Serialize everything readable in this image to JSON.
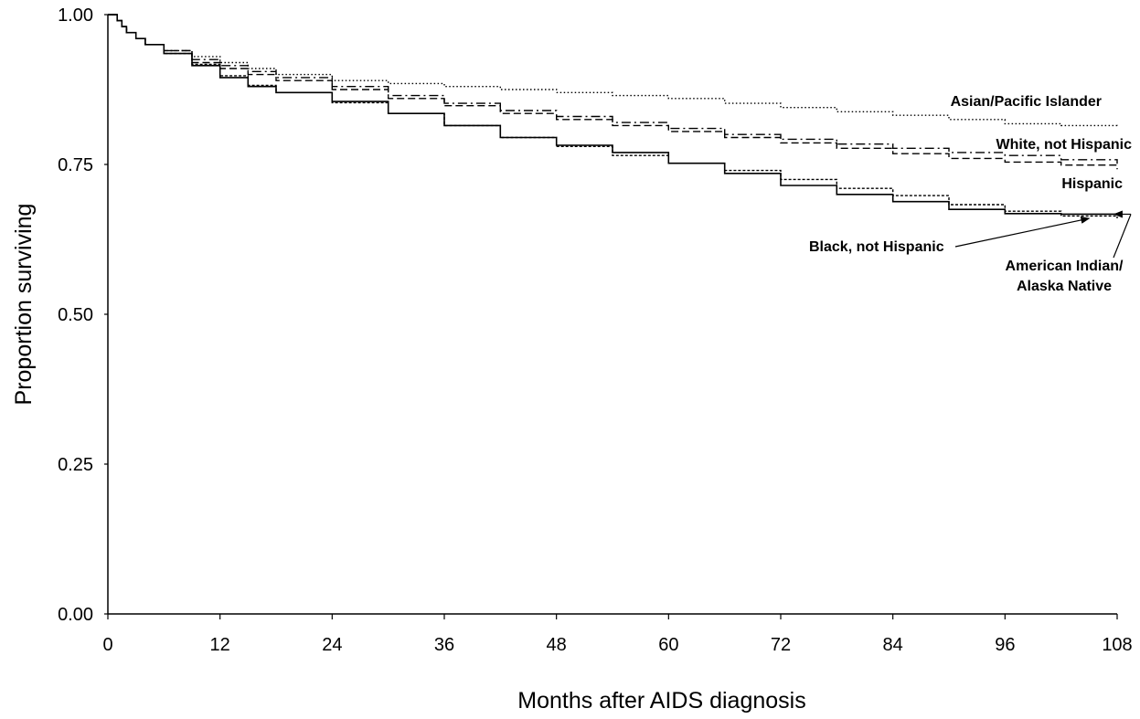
{
  "chart_data": {
    "type": "line",
    "title": "",
    "xlabel": "Months after AIDS diagnosis",
    "ylabel": "Proportion surviving",
    "xlim": [
      0,
      108
    ],
    "ylim": [
      0,
      1
    ],
    "x_ticks": [
      "0",
      "12",
      "24",
      "36",
      "48",
      "60",
      "72",
      "84",
      "96",
      "108"
    ],
    "y_ticks": [
      "0.00",
      "0.25",
      "0.50",
      "0.75",
      "1.00"
    ],
    "grid": false,
    "legend": "none (labels placed next to lines)",
    "series": [
      {
        "name": "Asian/Pacific Islander",
        "style": "dotted",
        "x": [
          0,
          0.5,
          1,
          1.5,
          2,
          3,
          4,
          6,
          9,
          12,
          15,
          18,
          24,
          30,
          36,
          42,
          48,
          54,
          60,
          66,
          72,
          78,
          84,
          90,
          96,
          102,
          108
        ],
        "y": [
          1.0,
          1.0,
          0.99,
          0.98,
          0.97,
          0.96,
          0.95,
          0.94,
          0.93,
          0.92,
          0.91,
          0.9,
          0.89,
          0.885,
          0.88,
          0.875,
          0.87,
          0.865,
          0.86,
          0.852,
          0.845,
          0.838,
          0.832,
          0.825,
          0.818,
          0.815,
          0.814
        ]
      },
      {
        "name": "White, not Hispanic",
        "style": "dash-dot",
        "x": [
          0,
          0.5,
          1,
          1.5,
          2,
          3,
          4,
          6,
          9,
          12,
          15,
          18,
          24,
          30,
          36,
          42,
          48,
          54,
          60,
          66,
          72,
          78,
          84,
          90,
          96,
          102,
          108
        ],
        "y": [
          1.0,
          1.0,
          0.99,
          0.98,
          0.97,
          0.96,
          0.95,
          0.94,
          0.925,
          0.915,
          0.905,
          0.895,
          0.88,
          0.865,
          0.852,
          0.84,
          0.83,
          0.82,
          0.81,
          0.8,
          0.792,
          0.784,
          0.777,
          0.77,
          0.765,
          0.758,
          0.751
        ]
      },
      {
        "name": "Hispanic",
        "style": "dashed",
        "x": [
          0,
          0.5,
          1,
          1.5,
          2,
          3,
          4,
          6,
          9,
          12,
          15,
          18,
          24,
          30,
          36,
          42,
          48,
          54,
          60,
          66,
          72,
          78,
          84,
          90,
          96,
          102,
          108
        ],
        "y": [
          1.0,
          1.0,
          0.99,
          0.98,
          0.97,
          0.96,
          0.95,
          0.94,
          0.92,
          0.91,
          0.9,
          0.89,
          0.875,
          0.86,
          0.848,
          0.835,
          0.825,
          0.815,
          0.805,
          0.795,
          0.786,
          0.777,
          0.768,
          0.76,
          0.754,
          0.749,
          0.742
        ]
      },
      {
        "name": "Black, not Hispanic",
        "style": "solid",
        "x": [
          0,
          0.5,
          1,
          1.5,
          2,
          3,
          4,
          6,
          9,
          12,
          15,
          18,
          24,
          30,
          36,
          42,
          48,
          54,
          60,
          66,
          72,
          78,
          84,
          90,
          96,
          102,
          108
        ],
        "y": [
          1.0,
          1.0,
          0.99,
          0.98,
          0.97,
          0.96,
          0.95,
          0.935,
          0.915,
          0.895,
          0.88,
          0.87,
          0.855,
          0.835,
          0.815,
          0.795,
          0.782,
          0.77,
          0.752,
          0.735,
          0.715,
          0.7,
          0.688,
          0.675,
          0.668,
          0.667,
          0.667
        ]
      },
      {
        "name": "American Indian/Alaska Native",
        "style": "short-dashed",
        "x": [
          0,
          0.5,
          1,
          1.5,
          2,
          3,
          4,
          6,
          9,
          12,
          15,
          18,
          24,
          30,
          36,
          42,
          48,
          54,
          60,
          66,
          72,
          78,
          84,
          90,
          96,
          102,
          108
        ],
        "y": [
          1.0,
          1.0,
          0.99,
          0.98,
          0.97,
          0.96,
          0.95,
          0.935,
          0.917,
          0.898,
          0.882,
          0.87,
          0.853,
          0.835,
          0.815,
          0.795,
          0.78,
          0.765,
          0.752,
          0.74,
          0.725,
          0.71,
          0.698,
          0.683,
          0.672,
          0.664,
          0.66
        ]
      }
    ],
    "annotations": [
      {
        "text": "Asian/Pacific Islander"
      },
      {
        "text": "White, not Hispanic"
      },
      {
        "text": "Hispanic"
      },
      {
        "text": "Black, not Hispanic"
      },
      {
        "lines": [
          "American Indian/",
          "Alaska Native"
        ]
      }
    ]
  }
}
